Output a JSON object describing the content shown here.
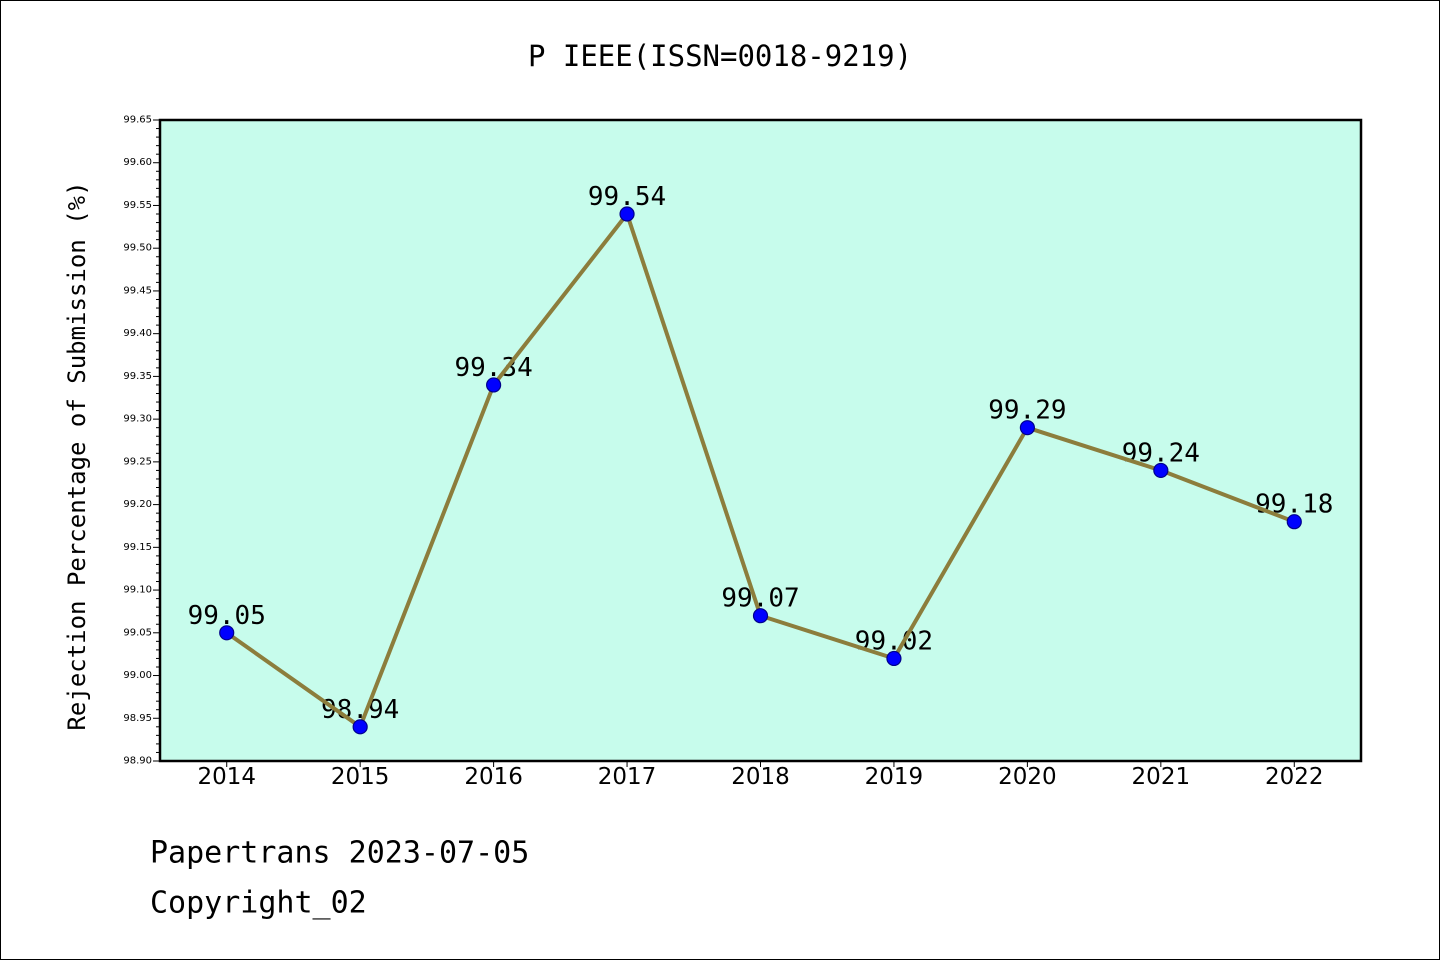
{
  "chart_data": {
    "type": "line",
    "title": "P IEEE(ISSN=0018-9219)",
    "xlabel": "",
    "ylabel": "Rejection Percentage of Submission (%)",
    "categories": [
      "2014",
      "2015",
      "2016",
      "2017",
      "2018",
      "2019",
      "2020",
      "2021",
      "2022"
    ],
    "series": [
      {
        "values": [
          99.05,
          98.94,
          99.34,
          99.54,
          99.07,
          99.02,
          99.29,
          99.24,
          99.18
        ],
        "line_color": "#8c7d3c",
        "marker_color": "#0000ff",
        "marker_edge_color": "#00008b"
      }
    ],
    "show_data_labels": true,
    "ylim": [
      98.9,
      99.65
    ],
    "ytick_labels": [
      "98.90",
      "98.95",
      "99.00",
      "99.05",
      "99.10",
      "99.15",
      "99.20",
      "99.25",
      "99.30",
      "99.35",
      "99.40",
      "99.45",
      "99.50",
      "99.55",
      "99.60",
      "99.65"
    ],
    "grid": false,
    "legend": "none",
    "plot_background": "#c7fcec"
  },
  "footer": {
    "date_line": "Papertrans 2023-07-05",
    "copyright": "Copyright_02"
  }
}
